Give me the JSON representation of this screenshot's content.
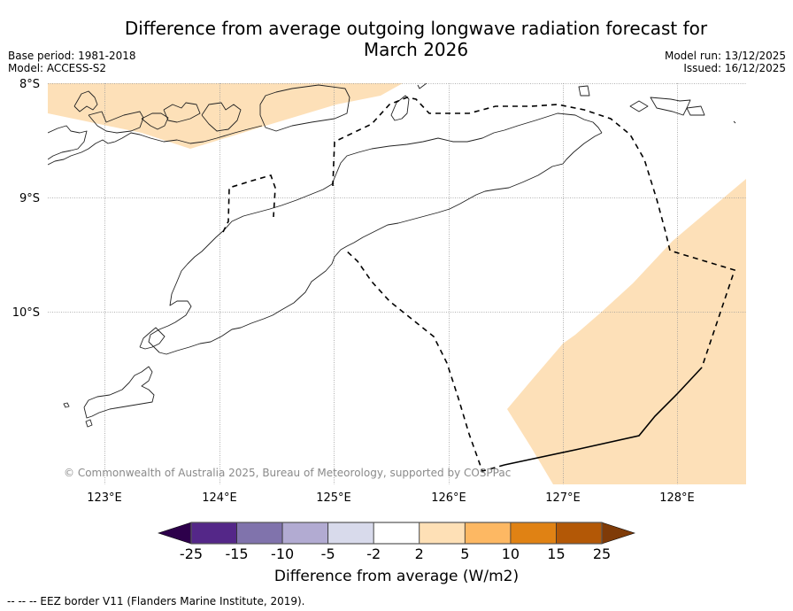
{
  "header": {
    "title": "Difference from average outgoing longwave radiation forecast for March 2026",
    "title_line1": "Difference from average outgoing longwave radiation forecast for",
    "title_line2": "March 2026",
    "base_period": "Base period: 1981-2018",
    "model": "Model: ACCESS-S2",
    "model_run": "Model run: 13/12/2025",
    "issued": "Issued: 16/12/2025"
  },
  "map": {
    "extent": {
      "lon_min": 122.5,
      "lon_max": 128.6,
      "lat_min": -11.5,
      "lat_max": -8.0
    },
    "lat_labels": [
      "8°S",
      "9°S",
      "10°S"
    ],
    "lon_labels": [
      "123°E",
      "124°E",
      "125°E",
      "126°E",
      "127°E",
      "128°E"
    ],
    "gridlines": true,
    "anomaly_regions": [
      {
        "name": "north-band",
        "category": "2 to 5",
        "color": "#fde0b8"
      },
      {
        "name": "southeast-region",
        "category": "2 to 5",
        "color": "#fde0b8"
      }
    ],
    "copyright": "© Commonwealth of Australia 2025, Bureau of Meteorology, supported by COSPPac"
  },
  "colorbar": {
    "title": "Difference from average (W/m2)",
    "ticks": [
      "-25",
      "-15",
      "-10",
      "-5",
      "-2",
      "2",
      "5",
      "10",
      "15",
      "25"
    ],
    "bins": [
      {
        "range": "< -25",
        "color": "#2d004b"
      },
      {
        "range": "-25 to -15",
        "color": "#542788"
      },
      {
        "range": "-15 to -10",
        "color": "#8073ac"
      },
      {
        "range": "-10 to -5",
        "color": "#b2abd2"
      },
      {
        "range": "-5 to -2",
        "color": "#d8daeb"
      },
      {
        "range": "-2 to 2",
        "color": "#ffffff"
      },
      {
        "range": "2 to 5",
        "color": "#fee0b6"
      },
      {
        "range": "5 to 10",
        "color": "#fdb863"
      },
      {
        "range": "10 to 15",
        "color": "#e08214"
      },
      {
        "range": "15 to 25",
        "color": "#b35806"
      },
      {
        "range": "> 25",
        "color": "#7f3b08"
      }
    ]
  },
  "footer": {
    "eez_note": "--  --  -- EEZ border V11 (Flanders Marine Institute, 2019)."
  }
}
